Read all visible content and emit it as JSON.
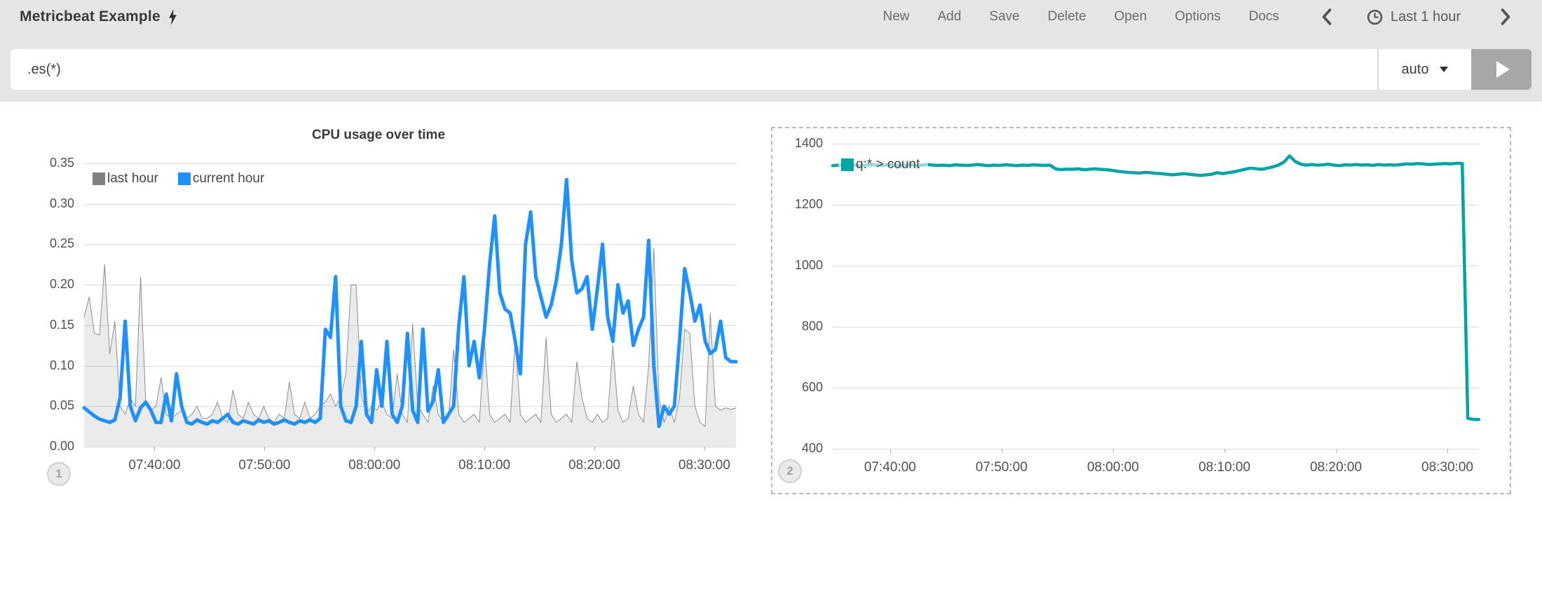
{
  "topbar": {
    "title": "Metricbeat Example",
    "menu": [
      {
        "label": "New"
      },
      {
        "label": "Add"
      },
      {
        "label": "Save"
      },
      {
        "label": "Delete"
      },
      {
        "label": "Open"
      },
      {
        "label": "Options"
      },
      {
        "label": "Docs"
      }
    ],
    "timepicker": {
      "label": "Last 1 hour"
    }
  },
  "query": {
    "value": ".es(*)",
    "interval": "auto"
  },
  "badges": {
    "chart1": "1",
    "chart2": "2"
  },
  "colors": {
    "topbar_bg": "#e5e5e5",
    "blue_series": "#1E90FF",
    "gray_series": "#8e8e8e",
    "teal_series": "#01A4A4",
    "grid": "#dadada",
    "dashed_border": "#b9b9b9"
  },
  "chart_data": [
    {
      "type": "line",
      "title": "CPU usage over time",
      "xlabel": "",
      "ylabel": "",
      "grid": true,
      "legend_position": "top-left-inside",
      "xlim": [
        453.6,
        512.87
      ],
      "ylim": [
        0,
        0.35
      ],
      "x_ticks": [
        {
          "v": 460,
          "label": "07:40:00"
        },
        {
          "v": 470,
          "label": "07:50:00"
        },
        {
          "v": 480,
          "label": "08:00:00"
        },
        {
          "v": 490,
          "label": "08:10:00"
        },
        {
          "v": 500,
          "label": "08:20:00"
        },
        {
          "v": 510,
          "label": "08:30:00"
        }
      ],
      "y_ticks": [
        {
          "v": 0.0,
          "label": "0.00"
        },
        {
          "v": 0.05,
          "label": "0.05"
        },
        {
          "v": 0.1,
          "label": "0.10"
        },
        {
          "v": 0.15,
          "label": "0.15"
        },
        {
          "v": 0.2,
          "label": "0.20"
        },
        {
          "v": 0.25,
          "label": "0.25"
        },
        {
          "v": 0.3,
          "label": "0.30"
        },
        {
          "v": 0.35,
          "label": "0.35"
        }
      ],
      "series": [
        {
          "name": "last hour",
          "type": "area",
          "color": "#8e8e8e",
          "swatch": "#808080",
          "fill": "rgba(128,128,128,0.16)",
          "width": 1,
          "values": [
            0.16,
            0.185,
            0.14,
            0.138,
            0.225,
            0.115,
            0.155,
            0.05,
            0.04,
            0.06,
            0.05,
            0.21,
            0.055,
            0.045,
            0.05,
            0.085,
            0.04,
            0.035,
            0.04,
            0.045,
            0.035,
            0.04,
            0.05,
            0.035,
            0.035,
            0.04,
            0.055,
            0.035,
            0.03,
            0.07,
            0.04,
            0.035,
            0.055,
            0.04,
            0.035,
            0.05,
            0.035,
            0.03,
            0.04,
            0.035,
            0.08,
            0.04,
            0.035,
            0.055,
            0.035,
            0.04,
            0.05,
            0.055,
            0.065,
            0.05,
            0.06,
            0.09,
            0.2,
            0.2,
            0.065,
            0.04,
            0.05,
            0.045,
            0.055,
            0.04,
            0.035,
            0.09,
            0.04,
            0.03,
            0.152,
            0.05,
            0.04,
            0.03,
            0.075,
            0.04,
            0.03,
            0.035,
            0.12,
            0.04,
            0.03,
            0.035,
            0.04,
            0.03,
            0.13,
            0.04,
            0.03,
            0.035,
            0.04,
            0.03,
            0.135,
            0.04,
            0.03,
            0.035,
            0.04,
            0.03,
            0.135,
            0.04,
            0.03,
            0.035,
            0.04,
            0.03,
            0.105,
            0.06,
            0.035,
            0.03,
            0.04,
            0.03,
            0.035,
            0.125,
            0.045,
            0.03,
            0.035,
            0.075,
            0.04,
            0.03,
            0.1,
            0.245,
            0.06,
            0.03,
            0.05,
            0.03,
            0.06,
            0.145,
            0.14,
            0.05,
            0.03,
            0.025,
            0.165,
            0.05,
            0.045,
            0.048,
            0.046,
            0.048
          ]
        },
        {
          "name": "current hour",
          "type": "line",
          "color": "#1E90FF",
          "swatch": "#1E90FF",
          "width": 5,
          "values": [
            0.048,
            0.043,
            0.038,
            0.034,
            0.032,
            0.03,
            0.033,
            0.06,
            0.155,
            0.05,
            0.032,
            0.048,
            0.055,
            0.045,
            0.03,
            0.03,
            0.065,
            0.032,
            0.09,
            0.05,
            0.03,
            0.028,
            0.033,
            0.03,
            0.028,
            0.032,
            0.03,
            0.035,
            0.04,
            0.03,
            0.028,
            0.032,
            0.03,
            0.028,
            0.033,
            0.03,
            0.032,
            0.028,
            0.03,
            0.033,
            0.03,
            0.028,
            0.032,
            0.03,
            0.033,
            0.03,
            0.035,
            0.145,
            0.135,
            0.21,
            0.05,
            0.032,
            0.03,
            0.05,
            0.13,
            0.04,
            0.03,
            0.095,
            0.05,
            0.13,
            0.04,
            0.03,
            0.05,
            0.14,
            0.045,
            0.03,
            0.145,
            0.044,
            0.056,
            0.095,
            0.03,
            0.04,
            0.05,
            0.15,
            0.21,
            0.1,
            0.13,
            0.085,
            0.145,
            0.225,
            0.285,
            0.19,
            0.17,
            0.165,
            0.13,
            0.09,
            0.25,
            0.29,
            0.21,
            0.185,
            0.16,
            0.175,
            0.205,
            0.25,
            0.33,
            0.23,
            0.19,
            0.195,
            0.21,
            0.145,
            0.195,
            0.25,
            0.16,
            0.13,
            0.2,
            0.165,
            0.18,
            0.125,
            0.145,
            0.16,
            0.255,
            0.1,
            0.025,
            0.05,
            0.04,
            0.05,
            0.13,
            0.22,
            0.19,
            0.155,
            0.175,
            0.13,
            0.115,
            0.12,
            0.155,
            0.11,
            0.105,
            0.105
          ]
        }
      ]
    },
    {
      "type": "line",
      "title": "",
      "xlabel": "",
      "ylabel": "",
      "grid": true,
      "legend_position": "top-left-inside",
      "xlim": [
        454.85,
        512.83
      ],
      "ylim": [
        400,
        1400
      ],
      "x_ticks": [
        {
          "v": 460,
          "label": "07:40:00"
        },
        {
          "v": 470,
          "label": "07:50:00"
        },
        {
          "v": 480,
          "label": "08:00:00"
        },
        {
          "v": 490,
          "label": "08:10:00"
        },
        {
          "v": 500,
          "label": "08:20:00"
        },
        {
          "v": 510,
          "label": "08:30:00"
        }
      ],
      "y_ticks": [
        {
          "v": 400,
          "label": "400"
        },
        {
          "v": 600,
          "label": "600"
        },
        {
          "v": 800,
          "label": "800"
        },
        {
          "v": 1000,
          "label": "1000"
        },
        {
          "v": 1200,
          "label": "1200"
        },
        {
          "v": 1400,
          "label": "1400"
        }
      ],
      "series": [
        {
          "name": "q:* > count",
          "type": "line",
          "color": "#01A4A4",
          "swatch": "#01A4A4",
          "width": 4.5,
          "values": [
            1328,
            1330,
            1329,
            1331,
            1330,
            1328,
            1330,
            1332,
            1330,
            1329,
            1331,
            1330,
            1328,
            1330,
            1331,
            1329,
            1330,
            1332,
            1330,
            1329,
            1330,
            1328,
            1331,
            1330,
            1329,
            1330,
            1332,
            1330,
            1328,
            1330,
            1329,
            1331,
            1330,
            1328,
            1330,
            1329,
            1331,
            1330,
            1329,
            1330,
            1318,
            1315,
            1317,
            1316,
            1318,
            1315,
            1316,
            1318,
            1316,
            1315,
            1313,
            1310,
            1308,
            1306,
            1305,
            1304,
            1306,
            1305,
            1303,
            1302,
            1300,
            1298,
            1300,
            1302,
            1300,
            1298,
            1296,
            1298,
            1300,
            1305,
            1302,
            1305,
            1308,
            1312,
            1316,
            1320,
            1318,
            1316,
            1320,
            1324,
            1330,
            1340,
            1360,
            1342,
            1333,
            1330,
            1332,
            1330,
            1331,
            1333,
            1330,
            1328,
            1331,
            1330,
            1332,
            1330,
            1331,
            1329,
            1332,
            1330,
            1331,
            1330,
            1332,
            1334,
            1333,
            1335,
            1334,
            1332,
            1333,
            1334,
            1335,
            1334,
            1336,
            1335,
            500,
            496,
            496
          ]
        }
      ]
    }
  ]
}
